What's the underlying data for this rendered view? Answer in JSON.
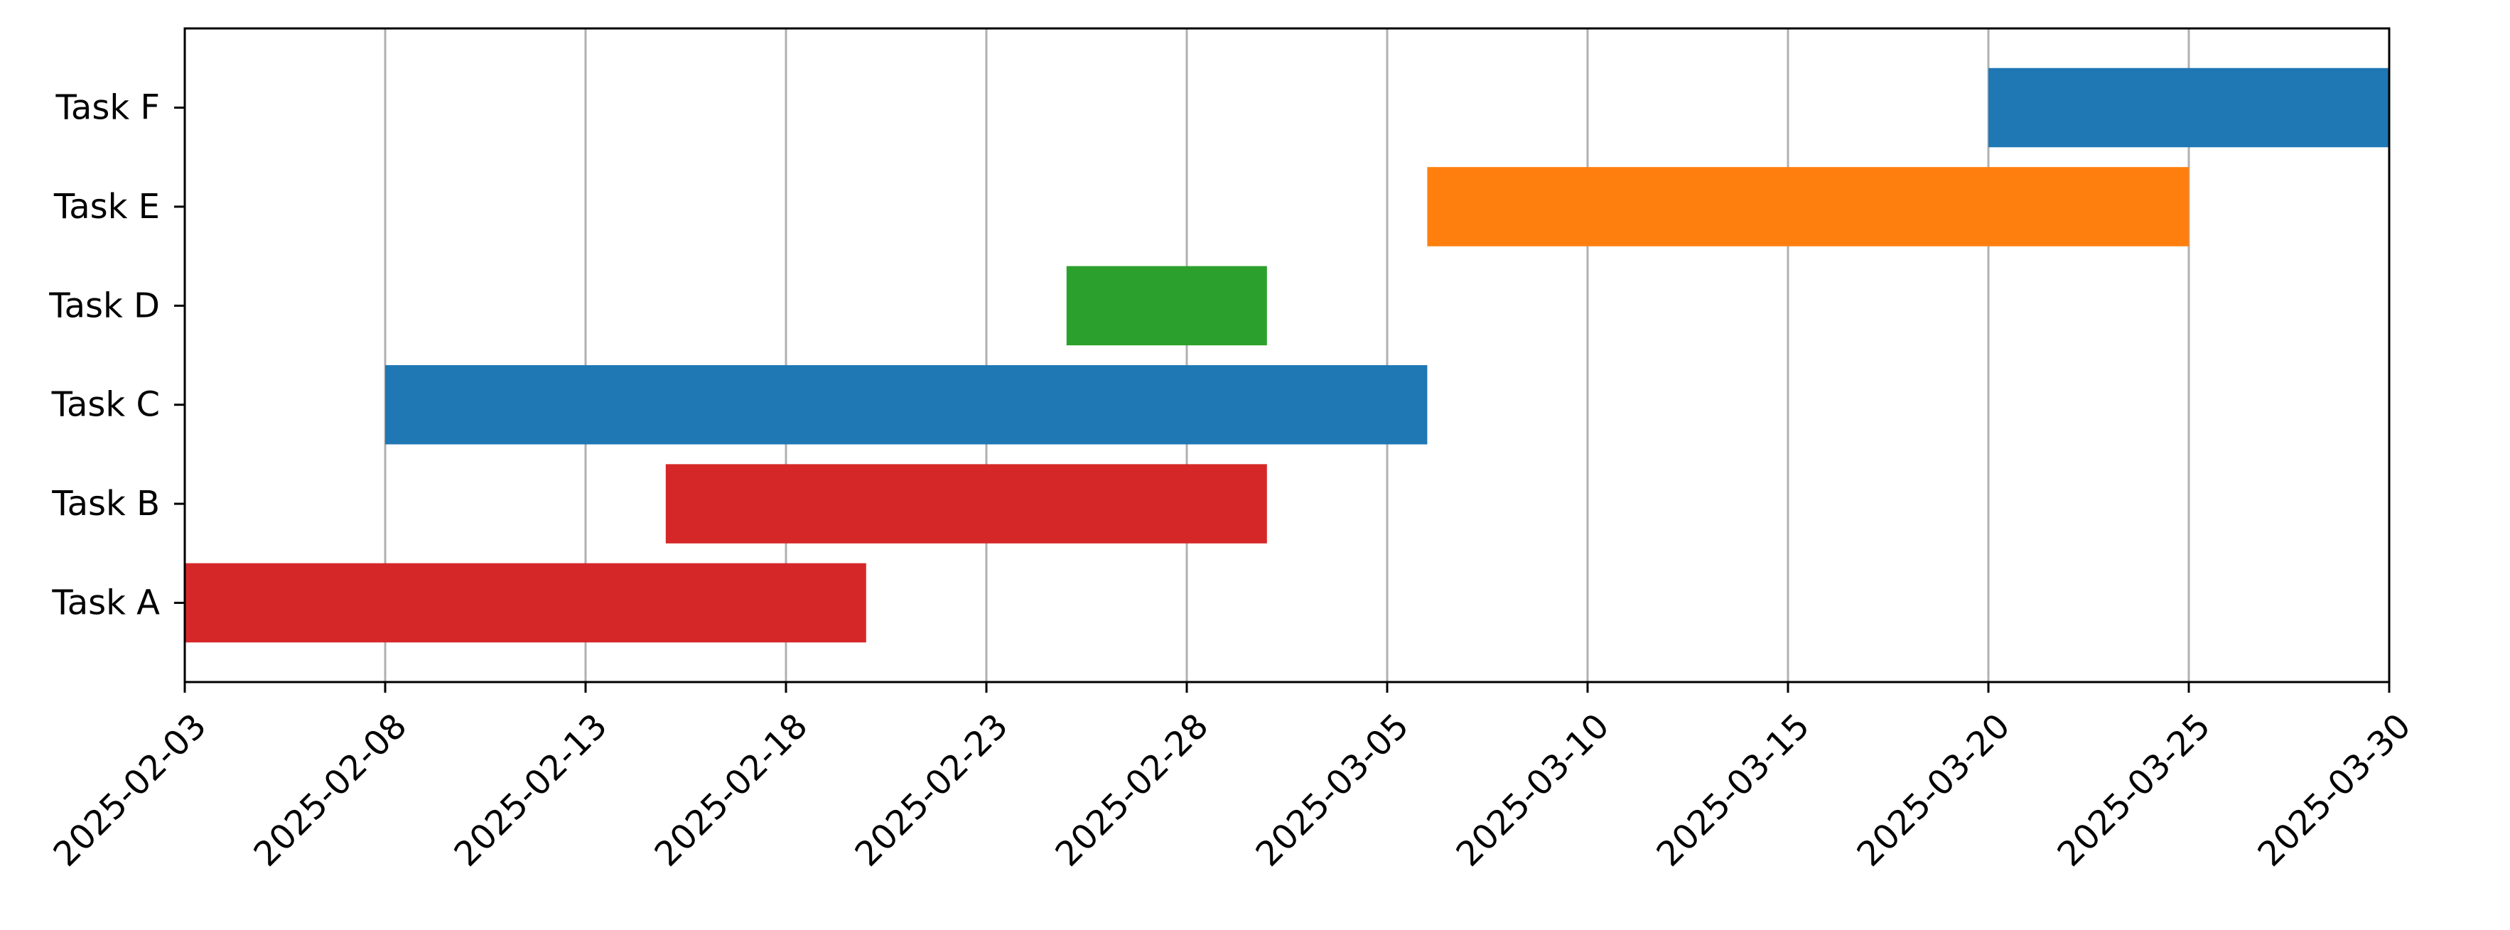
{
  "chart_data": {
    "type": "gantt",
    "title": "",
    "xlabel": "",
    "ylabel": "",
    "x_range": [
      "2025-02-03",
      "2025-03-30"
    ],
    "x_ticks": [
      "2025-02-03",
      "2025-02-08",
      "2025-02-13",
      "2025-02-18",
      "2025-02-23",
      "2025-02-28",
      "2025-03-05",
      "2025-03-10",
      "2025-03-15",
      "2025-03-20",
      "2025-03-25",
      "2025-03-30"
    ],
    "x_tick_rotation_deg": 45,
    "grid": "vertical",
    "grid_color": "#b0b0b0",
    "categories": [
      "Task A",
      "Task B",
      "Task C",
      "Task D",
      "Task E",
      "Task F"
    ],
    "tasks": [
      {
        "task": "Task A",
        "start": "2025-02-03",
        "end": "2025-02-20",
        "color": "#d62728"
      },
      {
        "task": "Task B",
        "start": "2025-02-15",
        "end": "2025-03-02",
        "color": "#d62728"
      },
      {
        "task": "Task C",
        "start": "2025-02-08",
        "end": "2025-03-06",
        "color": "#1f77b4"
      },
      {
        "task": "Task D",
        "start": "2025-02-25",
        "end": "2025-03-02",
        "color": "#2ca02c"
      },
      {
        "task": "Task E",
        "start": "2025-03-06",
        "end": "2025-03-25",
        "color": "#ff7f0e"
      },
      {
        "task": "Task F",
        "start": "2025-03-20",
        "end": "2025-03-30",
        "color": "#1f77b4"
      }
    ]
  }
}
